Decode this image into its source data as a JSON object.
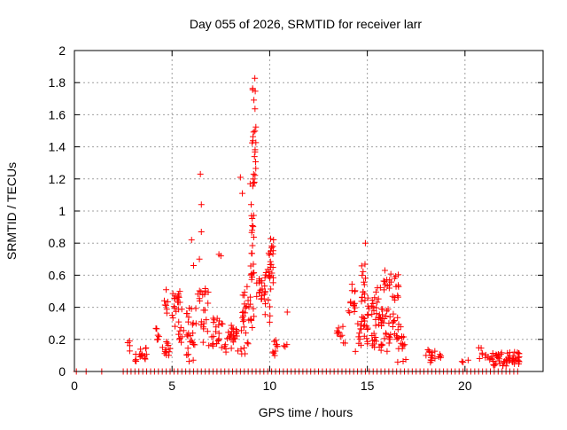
{
  "chart_data": {
    "type": "scatter",
    "title": "Day 055 of 2026, SRMTID for receiver larr",
    "xlabel": "GPS time / hours",
    "ylabel": "SRMTID / TECUs",
    "xlim": [
      0,
      24
    ],
    "ylim": [
      0,
      2
    ],
    "xticks": [
      0,
      5,
      10,
      15,
      20
    ],
    "yticks": [
      0,
      0.2,
      0.4,
      0.6,
      0.8,
      1,
      1.2,
      1.4,
      1.6,
      1.8,
      2
    ],
    "grid": true,
    "marker": "+",
    "color": "#ff0000",
    "zero_points_x": [
      0.1,
      0.6,
      1.4,
      2.5,
      2.7,
      2.9,
      3.1,
      3.3,
      3.5,
      3.7,
      3.9,
      4.1,
      4.3,
      4.5,
      4.7,
      4.9,
      5.1,
      5.3,
      5.5,
      5.7,
      5.9,
      6.1,
      6.3,
      6.5,
      6.7,
      6.9,
      7.1,
      7.3,
      7.5,
      7.7,
      7.9,
      8.1,
      8.3,
      8.5,
      8.7,
      8.9,
      9.1,
      9.3,
      9.5,
      9.7,
      9.9,
      10.1,
      10.3,
      10.5,
      10.7,
      10.9,
      11.1,
      11.3,
      11.5,
      11.7,
      11.9,
      12.1,
      12.3,
      12.5,
      12.7,
      12.9,
      13.1,
      13.3,
      13.5,
      13.7,
      13.9,
      14.1,
      14.3,
      14.5,
      14.7,
      14.9,
      15.1,
      15.3,
      15.5,
      15.7,
      15.9,
      16.1,
      16.3,
      16.5,
      16.7,
      16.9,
      17.1,
      17.3,
      17.5,
      17.7,
      17.9,
      18.1,
      18.3,
      18.5,
      18.7,
      18.9,
      19.1,
      19.3,
      19.5,
      19.7,
      19.9,
      20.1,
      20.3,
      20.5,
      20.7,
      20.9,
      21.1,
      21.3,
      21.5,
      21.7,
      21.9,
      22.1,
      22.3,
      22.5,
      22.7
    ],
    "clusters": [
      {
        "x0": 2.7,
        "x1": 2.9,
        "ymin": 0.1,
        "ymax": 0.19,
        "n": 4
      },
      {
        "x0": 3.0,
        "x1": 3.2,
        "ymin": 0.05,
        "ymax": 0.12,
        "n": 4
      },
      {
        "x0": 3.3,
        "x1": 3.7,
        "ymin": 0.06,
        "ymax": 0.16,
        "n": 12
      },
      {
        "x0": 4.0,
        "x1": 4.4,
        "ymin": 0.19,
        "ymax": 0.28,
        "n": 6
      },
      {
        "x0": 4.5,
        "x1": 5.0,
        "ymin": 0.1,
        "ymax": 0.19,
        "n": 12
      },
      {
        "x0": 4.6,
        "x1": 4.8,
        "ymin": 0.3,
        "ymax": 0.52,
        "n": 7
      },
      {
        "x0": 5.0,
        "x1": 5.5,
        "ymin": 0.28,
        "ymax": 0.5,
        "n": 22
      },
      {
        "x0": 5.3,
        "x1": 5.6,
        "ymin": 0.15,
        "ymax": 0.3,
        "n": 8
      },
      {
        "x0": 5.7,
        "x1": 6.2,
        "ymin": 0.06,
        "ymax": 0.4,
        "n": 24
      },
      {
        "x0": 6.2,
        "x1": 6.9,
        "ymin": 0.15,
        "ymax": 0.52,
        "n": 24
      },
      {
        "x0": 7.0,
        "x1": 7.5,
        "ymin": 0.15,
        "ymax": 0.35,
        "n": 18
      },
      {
        "x0": 7.5,
        "x1": 8.3,
        "ymin": 0.12,
        "ymax": 0.3,
        "n": 26
      },
      {
        "x0": 8.3,
        "x1": 8.9,
        "ymin": 0.1,
        "ymax": 0.28,
        "n": 12
      },
      {
        "x0": 8.6,
        "x1": 9.1,
        "ymin": 0.3,
        "ymax": 0.55,
        "n": 20
      },
      {
        "x0": 9.0,
        "x1": 9.2,
        "ymin": 0.25,
        "ymax": 1.0,
        "n": 24
      },
      {
        "x0": 9.1,
        "x1": 9.3,
        "ymin": 1.15,
        "ymax": 1.88,
        "n": 24
      },
      {
        "x0": 9.3,
        "x1": 9.8,
        "ymin": 0.45,
        "ymax": 0.58,
        "n": 18
      },
      {
        "x0": 9.7,
        "x1": 10.1,
        "ymin": 0.3,
        "ymax": 0.65,
        "n": 16
      },
      {
        "x0": 9.9,
        "x1": 10.2,
        "ymin": 0.55,
        "ymax": 0.83,
        "n": 20
      },
      {
        "x0": 10.1,
        "x1": 10.4,
        "ymin": 0.08,
        "ymax": 0.2,
        "n": 10
      },
      {
        "x0": 10.7,
        "x1": 10.9,
        "ymin": 0.14,
        "ymax": 0.17,
        "n": 3
      },
      {
        "x0": 13.4,
        "x1": 13.9,
        "ymin": 0.17,
        "ymax": 0.3,
        "n": 10
      },
      {
        "x0": 14.0,
        "x1": 14.4,
        "ymin": 0.35,
        "ymax": 0.55,
        "n": 14
      },
      {
        "x0": 14.3,
        "x1": 14.7,
        "ymin": 0.12,
        "ymax": 0.32,
        "n": 10
      },
      {
        "x0": 14.7,
        "x1": 15.0,
        "ymin": 0.2,
        "ymax": 0.7,
        "n": 24
      },
      {
        "x0": 15.0,
        "x1": 15.5,
        "ymin": 0.15,
        "ymax": 0.5,
        "n": 26
      },
      {
        "x0": 15.4,
        "x1": 15.8,
        "ymin": 0.28,
        "ymax": 0.55,
        "n": 14
      },
      {
        "x0": 15.6,
        "x1": 16.2,
        "ymin": 0.12,
        "ymax": 0.4,
        "n": 26
      },
      {
        "x0": 15.8,
        "x1": 16.1,
        "ymin": 0.5,
        "ymax": 0.62,
        "n": 6
      },
      {
        "x0": 16.1,
        "x1": 16.6,
        "ymin": 0.2,
        "ymax": 0.62,
        "n": 26
      },
      {
        "x0": 16.5,
        "x1": 17.0,
        "ymin": 0.05,
        "ymax": 0.3,
        "n": 18
      },
      {
        "x0": 18.0,
        "x1": 18.5,
        "ymin": 0.05,
        "ymax": 0.14,
        "n": 14
      },
      {
        "x0": 18.6,
        "x1": 18.8,
        "ymin": 0.06,
        "ymax": 0.12,
        "n": 4
      },
      {
        "x0": 19.8,
        "x1": 20.2,
        "ymin": 0.04,
        "ymax": 0.1,
        "n": 3
      },
      {
        "x0": 20.7,
        "x1": 20.9,
        "ymin": 0.08,
        "ymax": 0.16,
        "n": 5
      },
      {
        "x0": 21.0,
        "x1": 21.4,
        "ymin": 0.06,
        "ymax": 0.11,
        "n": 6
      },
      {
        "x0": 21.4,
        "x1": 22.2,
        "ymin": 0.03,
        "ymax": 0.12,
        "n": 28
      },
      {
        "x0": 22.2,
        "x1": 22.8,
        "ymin": 0.04,
        "ymax": 0.13,
        "n": 24
      }
    ],
    "outliers": [
      {
        "x": 6.45,
        "y": 1.23
      },
      {
        "x": 6.5,
        "y": 1.04
      },
      {
        "x": 6.5,
        "y": 0.87
      },
      {
        "x": 6.0,
        "y": 0.82
      },
      {
        "x": 6.4,
        "y": 0.7
      },
      {
        "x": 6.1,
        "y": 0.66
      },
      {
        "x": 7.4,
        "y": 0.73
      },
      {
        "x": 7.5,
        "y": 0.72
      },
      {
        "x": 8.5,
        "y": 1.21
      },
      {
        "x": 8.6,
        "y": 1.11
      },
      {
        "x": 9.0,
        "y": 1.17
      },
      {
        "x": 9.05,
        "y": 1.04
      },
      {
        "x": 9.1,
        "y": 0.88
      },
      {
        "x": 10.9,
        "y": 0.37
      },
      {
        "x": 14.9,
        "y": 0.8
      },
      {
        "x": 15.9,
        "y": 0.63
      }
    ]
  }
}
